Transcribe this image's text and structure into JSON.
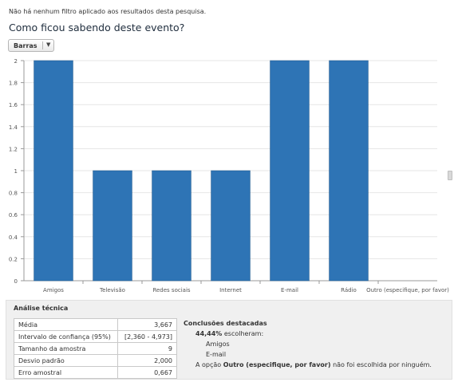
{
  "filter_note": "Não há nenhum filtro aplicado aos resultados desta pesquisa.",
  "question_title": "Como ficou sabendo deste evento?",
  "chart_type_selector": {
    "label": "Barras",
    "arrow_icon": "chevron-down-icon"
  },
  "chart_data": {
    "type": "bar",
    "categories": [
      "Amigos",
      "Televisão",
      "Redes sociais",
      "Internet",
      "E-mail",
      "Rádio",
      "Outro (especifique, por favor)"
    ],
    "values": [
      2,
      1,
      1,
      1,
      2,
      2,
      0
    ],
    "ylim": [
      0,
      2
    ],
    "yticks": [
      "0",
      "0.2",
      "0.4",
      "0.6",
      "0.8",
      "1",
      "1.2",
      "1.4",
      "1.6",
      "1.8",
      "2"
    ],
    "grid": true,
    "color": "#2e74b5"
  },
  "analysis": {
    "title": "Análise técnica",
    "stats": [
      {
        "label": "Média",
        "value": "3,667"
      },
      {
        "label": "Intervalo de confiança (95%)",
        "value": "[2,360 - 4,973]"
      },
      {
        "label": "Tamanho da amostra",
        "value": "9"
      },
      {
        "label": "Desvio padrão",
        "value": "2,000"
      },
      {
        "label": "Erro amostral",
        "value": "0,667"
      }
    ],
    "conclusions": {
      "title": "Conclusões destacadas",
      "percent": "44,44%",
      "percent_text": "escolheram:",
      "options": [
        "Amigos",
        "E-mail"
      ],
      "none_prefix": "A opção",
      "none_option": "Outro (especifique, por favor)",
      "none_suffix": "não foi escolhida por ninguém."
    }
  }
}
